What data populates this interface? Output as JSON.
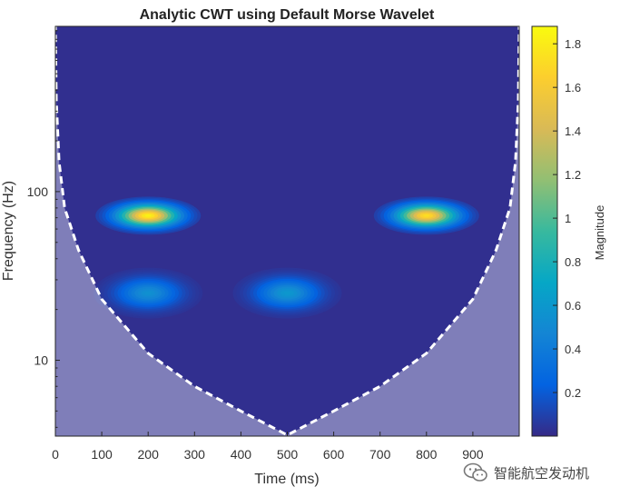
{
  "chart_data": {
    "type": "heatmap",
    "title": "Analytic CWT using Default Morse Wavelet",
    "xlabel": "Time (ms)",
    "ylabel": "Frequency (Hz)",
    "xlim": [
      0,
      1000
    ],
    "ylim_log10": [
      0.55,
      2.98
    ],
    "x_ticks": [
      {
        "v": 0,
        "label": "0"
      },
      {
        "v": 100,
        "label": "100"
      },
      {
        "v": 200,
        "label": "200"
      },
      {
        "v": 300,
        "label": "300"
      },
      {
        "v": 400,
        "label": "400"
      },
      {
        "v": 500,
        "label": "500"
      },
      {
        "v": 600,
        "label": "600"
      },
      {
        "v": 700,
        "label": "700"
      },
      {
        "v": 800,
        "label": "800"
      },
      {
        "v": 900,
        "label": "900"
      }
    ],
    "y_ticks": [
      {
        "v": 10,
        "label": "10"
      },
      {
        "v": 100,
        "label": "100"
      }
    ],
    "colorbar": {
      "label": "Magnitude",
      "range": [
        0,
        1.88
      ],
      "ticks": [
        "0.2",
        "0.4",
        "0.6",
        "0.8",
        "1",
        "1.2",
        "1.4",
        "1.6",
        "1.8"
      ],
      "colormap": "parula"
    },
    "blobs": [
      {
        "t_ms": 200,
        "freq_hz": 72,
        "magnitude": 1.85
      },
      {
        "t_ms": 800,
        "freq_hz": 72,
        "magnitude": 1.75
      },
      {
        "t_ms": 200,
        "freq_hz": 25,
        "magnitude": 0.55
      },
      {
        "t_ms": 500,
        "freq_hz": 25,
        "magnitude": 0.6
      }
    ],
    "background_magnitude": 0.02,
    "cone_of_influence": {
      "style": "dashed white line with shaded region outside",
      "points": [
        {
          "t": 0,
          "f": 1000
        },
        {
          "t": 2,
          "f": 350
        },
        {
          "t": 8,
          "f": 150
        },
        {
          "t": 20,
          "f": 80
        },
        {
          "t": 50,
          "f": 45
        },
        {
          "t": 100,
          "f": 23
        },
        {
          "t": 200,
          "f": 11
        },
        {
          "t": 300,
          "f": 7
        },
        {
          "t": 400,
          "f": 5
        },
        {
          "t": 500,
          "f": 3.6
        },
        {
          "t": 600,
          "f": 5
        },
        {
          "t": 700,
          "f": 7
        },
        {
          "t": 800,
          "f": 11
        },
        {
          "t": 900,
          "f": 23
        },
        {
          "t": 950,
          "f": 45
        },
        {
          "t": 980,
          "f": 80
        },
        {
          "t": 992,
          "f": 150
        },
        {
          "t": 998,
          "f": 350
        },
        {
          "t": 1000,
          "f": 1000
        }
      ]
    }
  },
  "watermark": {
    "text": "智能航空发动机",
    "icon": "wechat-icon"
  }
}
